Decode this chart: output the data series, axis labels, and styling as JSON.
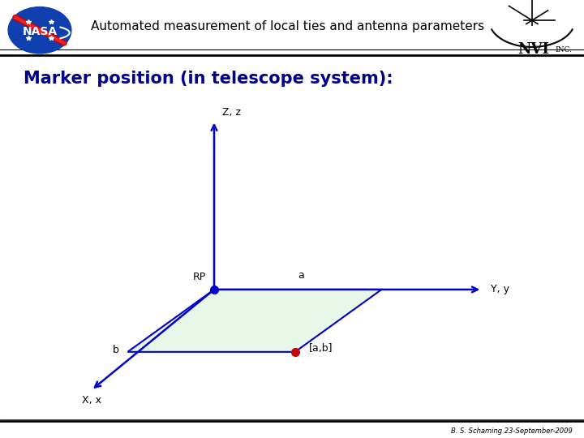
{
  "title": "Automated measurement of local ties and antenna parameters",
  "slide_title": "Marker position (in telescope system):",
  "background_color": "#ffffff",
  "footer_text": "B. S. Schaming 23-September-2009",
  "slide_title_color": "#00008B",
  "axis_color": "#0000cc",
  "parallelogram_fill": "#e8f8e8",
  "parallelogram_edge": "#0000cc",
  "rp_label": "RP",
  "a_label": "a",
  "b_label": "b",
  "ab_label": "[a,b]",
  "z_label": "Z, z",
  "y_label": "Y, y",
  "x_label": "X, x",
  "rp_dot_color": "#0000cc",
  "ab_dot_color": "#cc0000",
  "header_bg": "#f5f5f5",
  "header_line_color": "#888888"
}
